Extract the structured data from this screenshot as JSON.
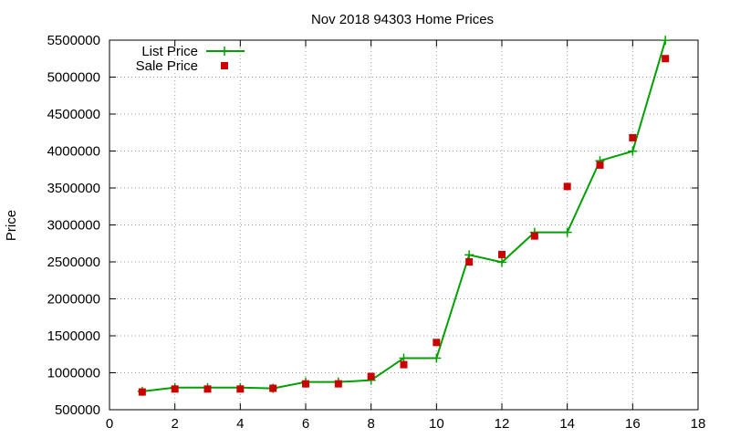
{
  "chart_data": {
    "type": "line",
    "title": "Nov 2018 94303 Home Prices",
    "xlabel": "",
    "ylabel": "Price",
    "xlim": [
      0,
      18
    ],
    "ylim": [
      500000,
      5500000
    ],
    "xticks": [
      0,
      2,
      4,
      6,
      8,
      10,
      12,
      14,
      16,
      18
    ],
    "yticks": [
      500000,
      1000000,
      1500000,
      2000000,
      2500000,
      3000000,
      3500000,
      4000000,
      4500000,
      5000000,
      5500000
    ],
    "grid": true,
    "legend_position": "top-left",
    "series": [
      {
        "name": "List Price",
        "style": "line-with-plus-markers",
        "color": "#00a000",
        "x": [
          1,
          2,
          3,
          4,
          5,
          6,
          7,
          8,
          9,
          10,
          11,
          12,
          13,
          14,
          15,
          16,
          17
        ],
        "y": [
          749000,
          799000,
          799000,
          799000,
          789000,
          875000,
          875000,
          899000,
          1198000,
          1198000,
          2595000,
          2495000,
          2900000,
          2900000,
          3868000,
          3998000,
          5498000
        ]
      },
      {
        "name": "Sale Price",
        "style": "square-markers",
        "color": "#cc0000",
        "x": [
          1,
          2,
          3,
          4,
          5,
          6,
          7,
          8,
          9,
          10,
          11,
          12,
          13,
          14,
          15,
          16,
          17
        ],
        "y": [
          740000,
          780000,
          780000,
          780000,
          790000,
          850000,
          850000,
          950000,
          1110000,
          1410000,
          2500000,
          2600000,
          2850000,
          3520000,
          3810000,
          4180000,
          5250000
        ]
      }
    ]
  }
}
